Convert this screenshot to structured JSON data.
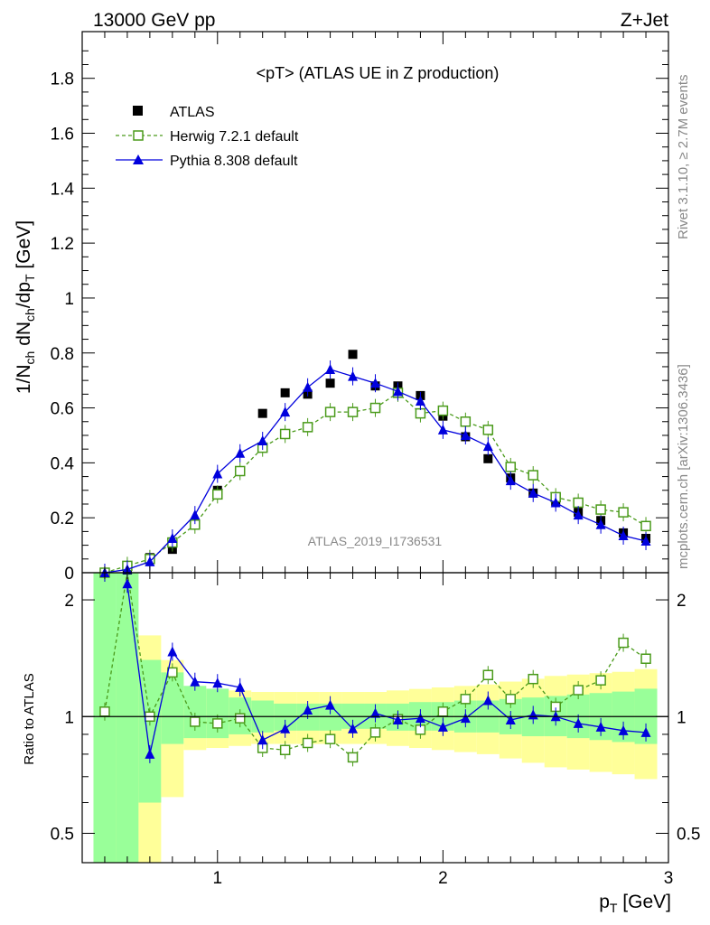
{
  "header": {
    "energy": "13000 GeV pp",
    "process": "Z+Jet"
  },
  "plot_title": "<pT> (ATLAS UE in Z production)",
  "analysis_id": "ATLAS_2019_I1736531",
  "side_labels": {
    "rivet": "Rivet 3.1.10, ≥ 2.7M events",
    "mcplots": "mcplots.cern.ch [arXiv:1306.3436]"
  },
  "axes": {
    "x_label": "p_T [GeV]",
    "y_label_main": "1/N_ch dN_ch/dp_T [GeV]",
    "y_label_ratio": "Ratio to ATLAS",
    "x_ticks": [
      1,
      2,
      3
    ],
    "y_ticks_main": [
      0,
      0.2,
      0.4,
      0.6,
      0.8,
      1,
      1.2,
      1.4,
      1.6,
      1.8
    ],
    "y_tick_labels_main": [
      "0",
      "0.2",
      "0.4",
      "0.6",
      "0.8",
      "1",
      "1.2",
      "1.4",
      "1.6",
      "1.8"
    ],
    "y_ticks_ratio": [
      0.5,
      1,
      2
    ],
    "y_tick_labels_ratio": [
      "0.5",
      "1",
      "2"
    ]
  },
  "legend": [
    {
      "label": "ATLAS",
      "color": "#000000",
      "marker": "filled-square"
    },
    {
      "label": "Herwig 7.2.1 default",
      "color": "#4a9a1a",
      "marker": "open-square"
    },
    {
      "label": "Pythia 8.308 default",
      "color": "#0000dd",
      "marker": "filled-triangle"
    }
  ],
  "chart_data": [
    {
      "type": "scatter",
      "panel": "main",
      "xlim": [
        0.4,
        3.0
      ],
      "ylim": [
        0,
        1.97
      ],
      "x": [
        0.5,
        0.6,
        0.7,
        0.8,
        0.9,
        1.0,
        1.1,
        1.2,
        1.3,
        1.4,
        1.5,
        1.6,
        1.7,
        1.8,
        1.9,
        2.0,
        2.1,
        2.2,
        2.3,
        2.4,
        2.5,
        2.6,
        2.7,
        2.8,
        2.9
      ],
      "series": [
        {
          "name": "ATLAS",
          "values": [
            0.0,
            0.01,
            0.055,
            0.085,
            0.18,
            0.3,
            0.37,
            0.58,
            0.655,
            0.65,
            0.69,
            0.795,
            0.68,
            0.68,
            0.645,
            0.57,
            0.495,
            0.415,
            0.345,
            0.29,
            0.26,
            0.22,
            0.19,
            0.145,
            0.125
          ]
        },
        {
          "name": "Herwig 7.2.1 default",
          "values": [
            0.0,
            0.025,
            0.05,
            0.11,
            0.175,
            0.285,
            0.37,
            0.455,
            0.505,
            0.53,
            0.585,
            0.585,
            0.6,
            0.655,
            0.58,
            0.59,
            0.55,
            0.52,
            0.385,
            0.355,
            0.275,
            0.255,
            0.23,
            0.22,
            0.17
          ]
        },
        {
          "name": "Pythia 8.308 default",
          "values": [
            0.0,
            0.012,
            0.04,
            0.125,
            0.21,
            0.36,
            0.435,
            0.48,
            0.585,
            0.675,
            0.74,
            0.715,
            0.69,
            0.66,
            0.625,
            0.52,
            0.5,
            0.46,
            0.335,
            0.29,
            0.255,
            0.21,
            0.175,
            0.135,
            0.115
          ]
        }
      ]
    },
    {
      "type": "scatter",
      "panel": "ratio",
      "xlim": [
        0.4,
        3.0
      ],
      "ylim": [
        0.42,
        2.35
      ],
      "log_y": true,
      "x": [
        0.5,
        0.6,
        0.7,
        0.8,
        0.9,
        1.0,
        1.1,
        1.2,
        1.3,
        1.4,
        1.5,
        1.6,
        1.7,
        1.8,
        1.9,
        2.0,
        2.1,
        2.2,
        2.3,
        2.4,
        2.5,
        2.6,
        2.7,
        2.8,
        2.9
      ],
      "series": [
        {
          "name": "Herwig 7.2.1 default",
          "values": [
            1.03,
            2.5,
            1.0,
            1.3,
            0.97,
            0.96,
            0.99,
            0.83,
            0.82,
            0.855,
            0.875,
            0.785,
            0.91,
            0.985,
            0.925,
            1.03,
            1.11,
            1.28,
            1.11,
            1.25,
            1.06,
            1.17,
            1.24,
            1.55,
            1.41
          ]
        },
        {
          "name": "Pythia 8.308 default",
          "values": [
            null,
            2.2,
            0.8,
            1.47,
            1.23,
            1.22,
            1.19,
            0.87,
            0.93,
            1.04,
            1.07,
            0.93,
            1.02,
            0.98,
            0.99,
            0.94,
            0.99,
            1.1,
            0.98,
            1.01,
            1.0,
            0.96,
            0.94,
            0.92,
            0.91
          ]
        }
      ],
      "bands": {
        "x_edges": [
          0.45,
          0.55,
          0.65,
          0.75,
          0.85,
          0.95,
          1.05,
          1.15,
          1.25,
          1.35,
          1.45,
          1.55,
          1.65,
          1.75,
          1.85,
          1.95,
          2.05,
          2.15,
          2.25,
          2.35,
          2.45,
          2.55,
          2.65,
          2.75,
          2.85,
          2.95
        ],
        "green_lo": [
          0.42,
          0.42,
          0.6,
          0.85,
          0.88,
          0.88,
          0.9,
          0.91,
          0.92,
          0.92,
          0.92,
          0.93,
          0.93,
          0.92,
          0.92,
          0.92,
          0.91,
          0.91,
          0.9,
          0.89,
          0.89,
          0.88,
          0.87,
          0.86,
          0.85
        ],
        "green_hi": [
          2.35,
          2.35,
          1.4,
          1.3,
          1.2,
          1.18,
          1.12,
          1.1,
          1.08,
          1.08,
          1.08,
          1.08,
          1.08,
          1.08,
          1.09,
          1.09,
          1.1,
          1.1,
          1.11,
          1.12,
          1.13,
          1.14,
          1.15,
          1.16,
          1.18
        ],
        "yellow_lo": [
          0.42,
          0.42,
          0.41,
          0.62,
          0.82,
          0.83,
          0.84,
          0.85,
          0.85,
          0.85,
          0.85,
          0.85,
          0.85,
          0.84,
          0.83,
          0.82,
          0.81,
          0.8,
          0.78,
          0.76,
          0.74,
          0.73,
          0.72,
          0.71,
          0.69
        ]
      }
    }
  ]
}
